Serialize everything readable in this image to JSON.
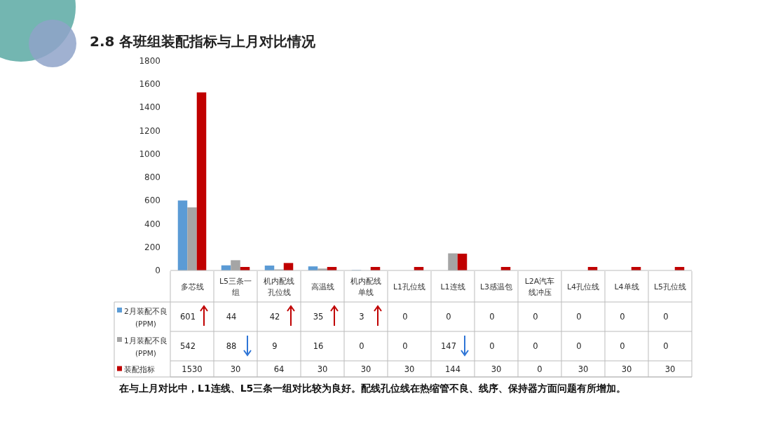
{
  "chart_data": {
    "type": "bar",
    "title": "2.8 各班组装配指标与上月对比情况",
    "categories": [
      "多芯线",
      "L5三条一组",
      "机内配线孔位线",
      "高温线",
      "机内配线单线",
      "L1孔位线",
      "L1连线",
      "L3感温包",
      "L2A汽车线冲压",
      "L4孔位线",
      "L4单线",
      "L5孔位线"
    ],
    "series": [
      {
        "name": "2月装配不良(PPM)",
        "color": "#5b9bd5",
        "values": [
          601,
          44,
          42,
          35,
          3,
          0,
          0,
          0,
          0,
          0,
          0,
          0
        ]
      },
      {
        "name": "1月装配不良(PPM)",
        "color": "#a5a5a5",
        "values": [
          542,
          88,
          9,
          16,
          0,
          0,
          147,
          0,
          0,
          0,
          0,
          0
        ]
      },
      {
        "name": "装配指标",
        "color": "#c00000",
        "values": [
          1530,
          30,
          64,
          30,
          30,
          30,
          144,
          30,
          0,
          30,
          30,
          30
        ]
      }
    ],
    "ylim": [
      0,
      1800
    ],
    "yticks": [
      0,
      200,
      400,
      600,
      800,
      1000,
      1200,
      1400,
      1600,
      1800
    ],
    "grid": false,
    "legend": "bottom",
    "data_labels": true,
    "annotations": [
      "在与上月对比中，L1连线、L5三条一组对比较为良好。配线孔位线在热缩管不良、线序、保持器方面问题有所增加。"
    ]
  }
}
